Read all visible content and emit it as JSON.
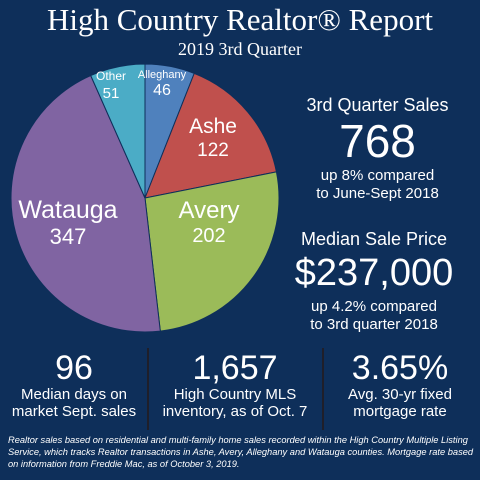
{
  "header": {
    "title": "High Country Realtor® Report",
    "subtitle": "2019 3rd Quarter"
  },
  "chart_data": {
    "type": "pie",
    "title": "",
    "slices": [
      {
        "label": "Alleghany",
        "value": 46,
        "color": "#4f81bd"
      },
      {
        "label": "Ashe",
        "value": 122,
        "color": "#c0504d"
      },
      {
        "label": "Avery",
        "value": 202,
        "color": "#9bbb59"
      },
      {
        "label": "Watauga",
        "value": 347,
        "color": "#8064a2"
      },
      {
        "label": "Other",
        "value": 51,
        "color": "#4bacc6"
      }
    ]
  },
  "sales": {
    "label": "3rd Quarter Sales",
    "value": "768",
    "note_line1": "up 8% compared",
    "note_line2": "to June-Sept 2018"
  },
  "price": {
    "label": "Median Sale Price",
    "value": "$237,000",
    "note_line1": "up 4.2% compared",
    "note_line2": "to 3rd quarter 2018"
  },
  "bottom_stats": [
    {
      "value": "96",
      "line1": "Median days on",
      "line2": "market Sept. sales"
    },
    {
      "value": "1,657",
      "line1": "High Country MLS",
      "line2": "inventory, as of Oct. 7"
    },
    {
      "value": "3.65%",
      "line1": "Avg. 30-yr fixed",
      "line2": "mortgage rate"
    }
  ],
  "footnote": "Realtor sales based on residential and multi-family home sales recorded within the High Country Multiple Listing Service, which tracks Realtor transactions in Ashe, Avery, Alleghany and Watauga counties. Mortgage rate based on information from Freddie Mac, as of October 3, 2019.",
  "colors": {
    "background": "#0e2f5a",
    "text": "#ffffff"
  }
}
